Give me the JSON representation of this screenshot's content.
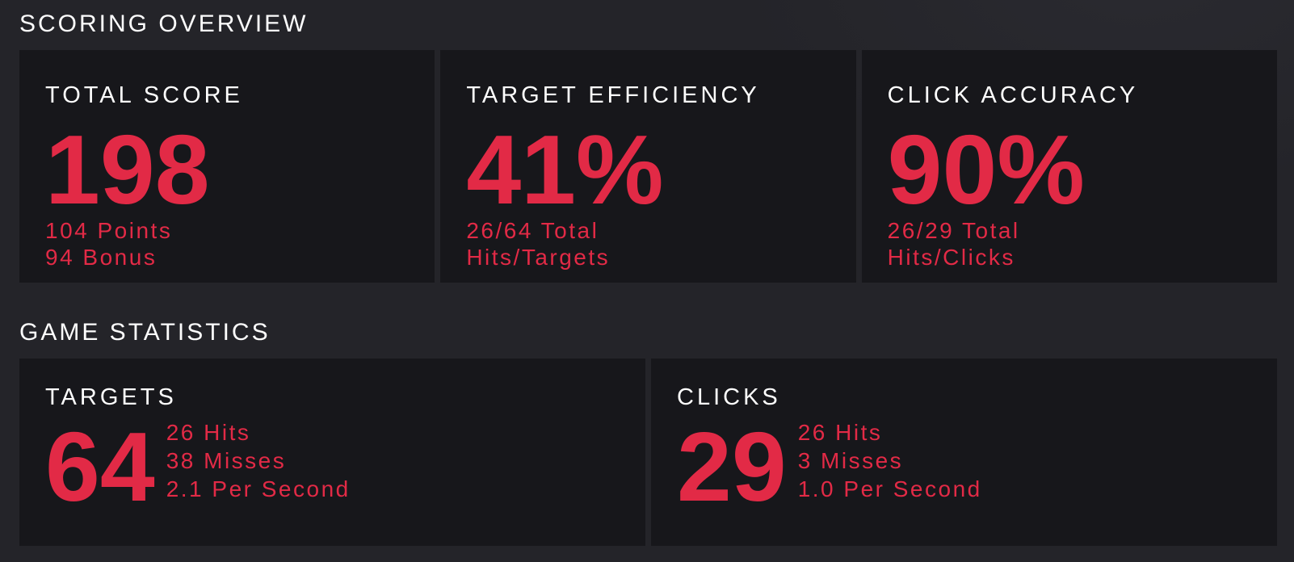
{
  "colors": {
    "page_background": "#242429",
    "card_background": "#17171b",
    "accent_red": "#e22a46",
    "text_white": "#ffffff"
  },
  "scoring_overview": {
    "title": "SCORING OVERVIEW",
    "cards": [
      {
        "label": "TOTAL SCORE",
        "value": "198",
        "sub_lines": [
          "104 Points",
          "94 Bonus"
        ]
      },
      {
        "label": "TARGET EFFICIENCY",
        "value": "41%",
        "sub_lines": [
          "26/64 Total",
          "Hits/Targets"
        ]
      },
      {
        "label": "CLICK ACCURACY",
        "value": "90%",
        "sub_lines": [
          "26/29 Total",
          "Hits/Clicks"
        ]
      }
    ]
  },
  "game_statistics": {
    "title": "GAME STATISTICS",
    "cards": [
      {
        "label": "TARGETS",
        "value": "64",
        "sub_lines": [
          "26 Hits",
          "38 Misses",
          "2.1 Per Second"
        ]
      },
      {
        "label": "CLICKS",
        "value": "29",
        "sub_lines": [
          "26 Hits",
          "3 Misses",
          "1.0 Per Second"
        ]
      }
    ]
  }
}
